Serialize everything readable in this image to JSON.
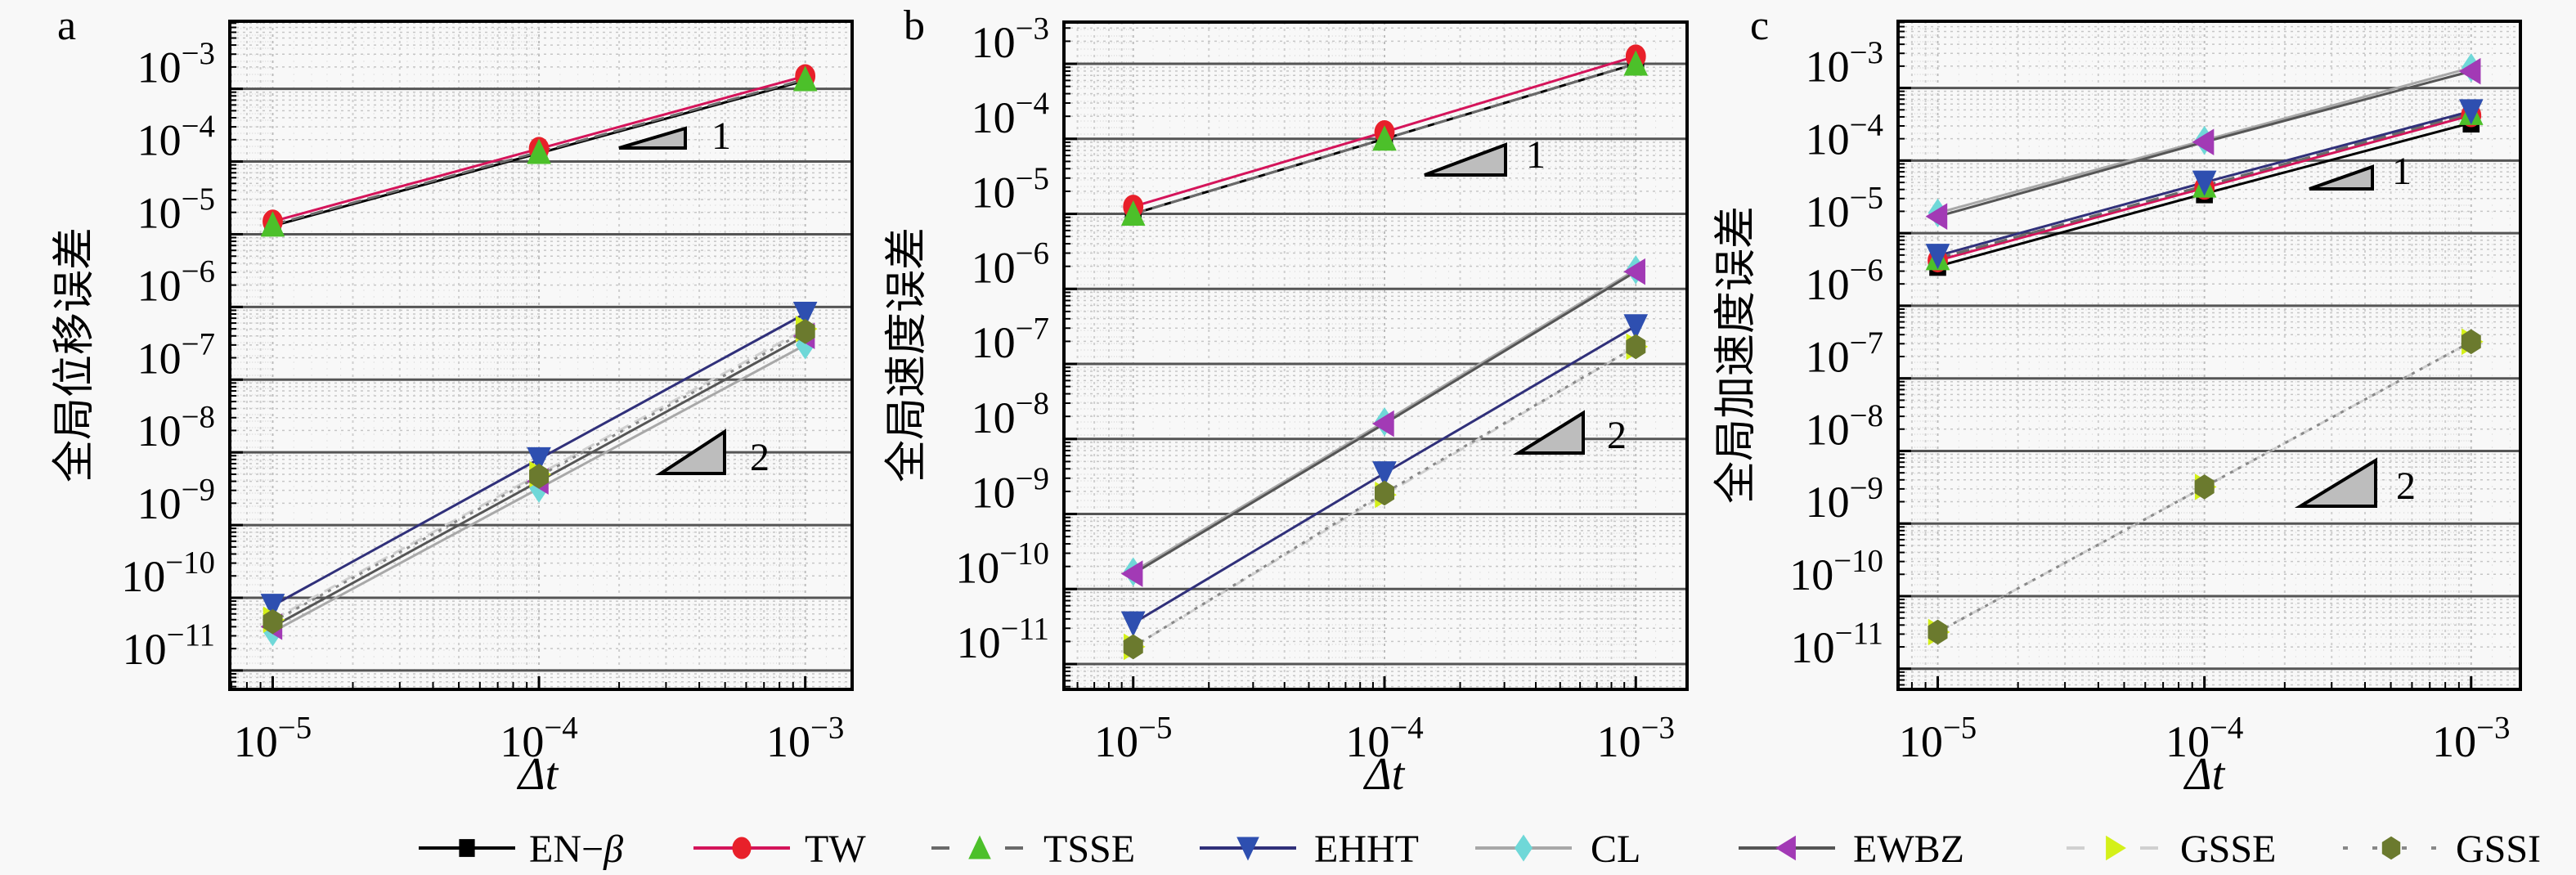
{
  "figure": {
    "panel_letters": [
      "a",
      "b",
      "c"
    ],
    "xlabel": "Δt",
    "background": "#f8f8f8"
  },
  "series_styles": [
    {
      "name": "EN−β",
      "color": "#000000",
      "line_color": "#000000",
      "dash": "solid",
      "marker": "square"
    },
    {
      "name": "TW",
      "color": "#e8202a",
      "line_color": "#d4145a",
      "dash": "solid",
      "marker": "circle"
    },
    {
      "name": "TSSE",
      "color": "#4cc02a",
      "line_color": "#6a6a6a",
      "dash": "dashed",
      "marker": "triangle-up"
    },
    {
      "name": "EHHT",
      "color": "#2e4fb0",
      "line_color": "#30307a",
      "dash": "solid",
      "marker": "triangle-down"
    },
    {
      "name": "CL",
      "color": "#6fd8d8",
      "line_color": "#a8a8a8",
      "dash": "solid",
      "marker": "diamond"
    },
    {
      "name": "EWBZ",
      "color": "#a23ab5",
      "line_color": "#555555",
      "dash": "solid",
      "marker": "triangle-left"
    },
    {
      "name": "GSSE",
      "color": "#d4f019",
      "line_color": "#d0d0d0",
      "dash": "dashed",
      "marker": "triangle-right"
    },
    {
      "name": "GSSI",
      "color": "#6b7a2e",
      "line_color": "#888888",
      "dash": "dotted",
      "marker": "hexagon"
    }
  ],
  "chart_data": [
    {
      "type": "line",
      "panel": "a",
      "title": "",
      "xlabel": "Δt",
      "ylabel": "全局位移误差",
      "xscale": "log",
      "yscale": "log",
      "xlim": [
        6.9e-06,
        0.0015
      ],
      "ylim": [
        5.5e-12,
        0.0085
      ],
      "xticks": [
        "10^-5",
        "10^-4",
        "10^-3"
      ],
      "yticks": [
        "10^-3",
        "10^-4",
        "10^-5",
        "10^-6",
        "10^-7",
        "10^-8",
        "10^-9",
        "10^-10",
        "10^-11"
      ],
      "grid": true,
      "x": [
        1e-05,
        0.0001,
        0.001
      ],
      "series": [
        {
          "name": "EN−β",
          "values": [
            1.3e-05,
            0.00013,
            0.0013
          ]
        },
        {
          "name": "TW",
          "values": [
            1.5e-05,
            0.00015,
            0.0015
          ]
        },
        {
          "name": "TSSE",
          "values": [
            1.35e-05,
            0.000135,
            0.00135
          ]
        },
        {
          "name": "EHHT",
          "values": [
            7.8e-11,
            8.1e-09,
            8.1e-07
          ]
        },
        {
          "name": "CL",
          "values": [
            3.4e-11,
            3.2e-09,
            3e-07
          ]
        },
        {
          "name": "EWBZ",
          "values": [
            4e-11,
            4e-09,
            4e-07
          ]
        },
        {
          "name": "GSSE",
          "values": [
            5e-11,
            5e-09,
            5e-07
          ]
        },
        {
          "name": "GSSI",
          "values": [
            4.7e-11,
            4.7e-09,
            4.6e-07
          ]
        }
      ],
      "slope_triangles": [
        {
          "label": "1",
          "order": 1
        },
        {
          "label": "2",
          "order": 2
        }
      ]
    },
    {
      "type": "line",
      "panel": "b",
      "title": "",
      "xlabel": "Δt",
      "ylabel": "全局速度误差",
      "xscale": "log",
      "yscale": "log",
      "xlim": [
        5.3e-06,
        0.0016
      ],
      "ylim": [
        4.6e-12,
        0.0036
      ],
      "xticks": [
        "10^-5",
        "10^-4",
        "10^-3"
      ],
      "yticks": [
        "10^-3",
        "10^-4",
        "10^-5",
        "10^-6",
        "10^-7",
        "10^-8",
        "10^-9",
        "10^-10",
        "10^-11"
      ],
      "grid": true,
      "x": [
        1e-05,
        0.0001,
        0.001
      ],
      "series": [
        {
          "name": "EN−β",
          "values": [
            1e-05,
            0.0001,
            0.001
          ]
        },
        {
          "name": "TW",
          "values": [
            1.25e-05,
            0.000123,
            0.00126
          ]
        },
        {
          "name": "TSSE",
          "values": [
            1e-05,
            0.0001,
            0.001
          ]
        },
        {
          "name": "EHHT",
          "values": [
            3.5e-11,
            3.5e-09,
            3.2e-07
          ]
        },
        {
          "name": "CL",
          "values": [
            1.7e-10,
            1.7e-08,
            1.8e-06
          ]
        },
        {
          "name": "EWBZ",
          "values": [
            1.6e-10,
            1.6e-08,
            1.7e-06
          ]
        },
        {
          "name": "GSSE",
          "values": [
            1.7e-11,
            1.8e-09,
            1.7e-07
          ]
        },
        {
          "name": "GSSI",
          "values": [
            1.7e-11,
            1.9e-09,
            1.7e-07
          ]
        }
      ],
      "slope_triangles": [
        {
          "label": "1",
          "order": 1
        },
        {
          "label": "2",
          "order": 2
        }
      ]
    },
    {
      "type": "line",
      "panel": "c",
      "title": "",
      "xlabel": "Δt",
      "ylabel": "全局加速度误差",
      "xscale": "log",
      "yscale": "log",
      "xlim": [
        7.1e-06,
        0.00153
      ],
      "ylim": [
        5.2e-12,
        0.0083
      ],
      "xticks": [
        "10^-5",
        "10^-4",
        "10^-3"
      ],
      "yticks": [
        "10^-3",
        "10^-4",
        "10^-5",
        "10^-6",
        "10^-7",
        "10^-8",
        "10^-9",
        "10^-10",
        "10^-11"
      ],
      "grid": true,
      "x": [
        1e-05,
        0.0001,
        0.001
      ],
      "series": [
        {
          "name": "EN−β",
          "values": [
            3.5e-06,
            3.5e-05,
            0.00033
          ]
        },
        {
          "name": "TW",
          "values": [
            4.2e-06,
            4.2e-05,
            0.00042
          ]
        },
        {
          "name": "TSSE",
          "values": [
            4.5e-06,
            4.5e-05,
            0.00045
          ]
        },
        {
          "name": "EHHT",
          "values": [
            4.9e-06,
            5e-05,
            0.00048
          ]
        },
        {
          "name": "CL",
          "values": [
            1.9e-05,
            0.00019,
            0.0019
          ]
        },
        {
          "name": "EWBZ",
          "values": [
            1.7e-05,
            0.00018,
            0.0017
          ]
        },
        {
          "name": "GSSE",
          "values": [
            3.2e-11,
            3.2e-09,
            3.2e-07
          ]
        },
        {
          "name": "GSSI",
          "values": [
            3.2e-11,
            3.2e-09,
            3.2e-07
          ]
        }
      ],
      "slope_triangles": [
        {
          "label": "1",
          "order": 1
        },
        {
          "label": "2",
          "order": 2
        }
      ]
    }
  ],
  "legend": {
    "placement": "bottom-center",
    "items": [
      "EN−β",
      "TW",
      "TSSE",
      "EHHT",
      "CL",
      "EWBZ",
      "GSSE",
      "GSSI"
    ]
  }
}
